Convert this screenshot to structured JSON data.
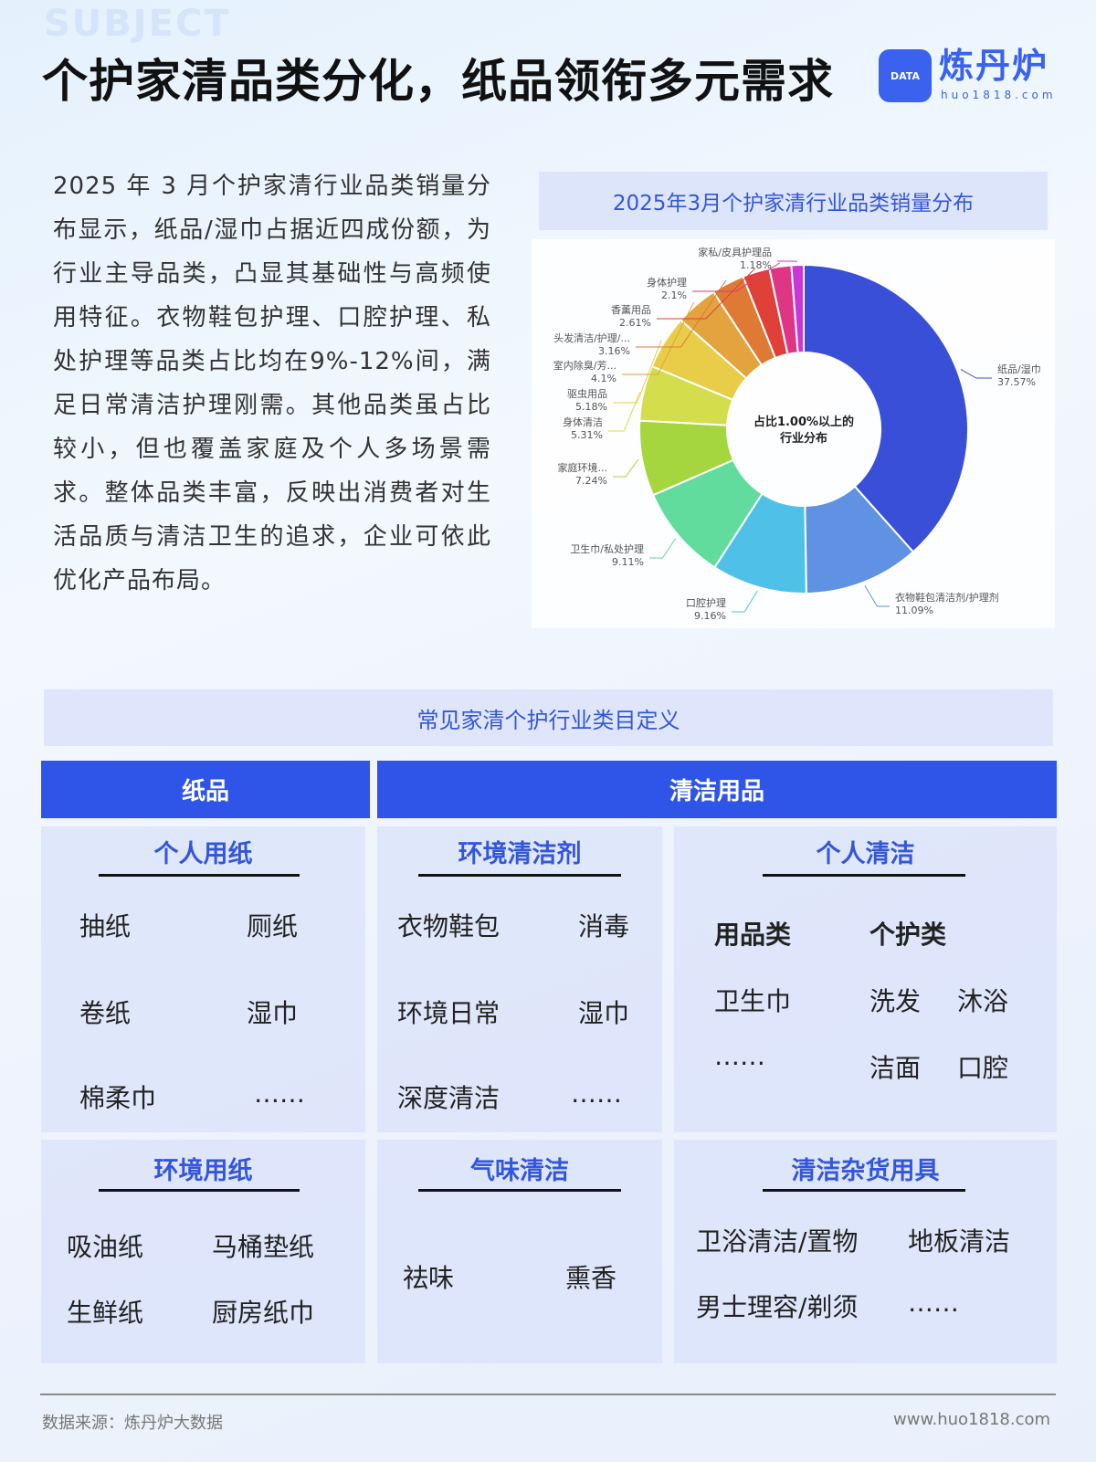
{
  "header": {
    "watermark": "SUBJECT",
    "title": "个护家清品类分化，纸品领衔多元需求"
  },
  "logo": {
    "name": "炼丹炉",
    "url": "huo1818.com",
    "badge": "DATA"
  },
  "paragraph": "2025 年 3 月个护家清行业品类销量分布显示，纸品/湿巾占据近四成份额，为行业主导品类，凸显其基础性与高频使用特征。衣物鞋包护理、口腔护理、私处护理等品类占比均在9%-12%间，满足日常清洁护理刚需。其他品类虽占比较小，但也覆盖家庭及个人多场景需求。整体品类丰富，反映出消费者对生活品质与清洁卫生的追求，企业可依此优化产品布局。",
  "chart_data": {
    "type": "pie",
    "title": "2025年3月个护家清行业品类销量分布",
    "center_label": [
      "占比1.00%以上的",
      "行业分布"
    ],
    "unit": "%",
    "categories": [
      "纸品/湿巾",
      "衣物鞋包清洁剂/护理剂",
      "口腔护理",
      "卫生巾/私处护理",
      "家庭环境...",
      "身体清洁",
      "驱虫用品",
      "室内除臭/芳...",
      "头发清洁/护理/...",
      "香薰用品",
      "身体护理",
      "家私/皮具护理品"
    ],
    "values": [
      37.57,
      11.09,
      9.16,
      9.11,
      7.24,
      5.31,
      5.18,
      4.1,
      3.16,
      2.61,
      2.1,
      1.18
    ],
    "colors": [
      "#3a4fd8",
      "#5f92e2",
      "#4fc0e8",
      "#62dc9c",
      "#a5d63e",
      "#d4de4c",
      "#e9cd48",
      "#e3a33e",
      "#de7a34",
      "#df4038",
      "#df3585",
      "#c935d8",
      "#7a40e0"
    ]
  },
  "definitions": {
    "title": "常见家清个护行业类目定义",
    "paper": {
      "header": "纸品",
      "personal": {
        "title": "个人用纸",
        "items": [
          "抽纸",
          "厕纸",
          "卷纸",
          "湿巾",
          "棉柔巾",
          "……"
        ]
      },
      "environment": {
        "title": "环境用纸",
        "items": [
          "吸油纸",
          "马桶垫纸",
          "生鲜纸",
          "厨房纸巾"
        ]
      }
    },
    "cleaning": {
      "header": "清洁用品",
      "env_cleaner": {
        "title": "环境清洁剂",
        "items": [
          "衣物鞋包",
          "消毒",
          "环境日常",
          "湿巾",
          "深度清洁",
          "……"
        ]
      },
      "personal_clean": {
        "title": "个人清洁",
        "col1": "用品类",
        "col2": "个护类",
        "items": [
          "卫生巾",
          "洗发",
          "沐浴",
          "……",
          "洁面",
          "口腔"
        ]
      },
      "odor": {
        "title": "气味清洁",
        "items": [
          "祛味",
          "熏香"
        ]
      },
      "sundries": {
        "title": "清洁杂货用具",
        "items": [
          "卫浴清洁/置物",
          "地板清洁",
          "男士理容/剃须",
          "……"
        ]
      }
    }
  },
  "footer": {
    "source": "数据来源：炼丹炉大数据",
    "url": "www.huo1818.com"
  }
}
